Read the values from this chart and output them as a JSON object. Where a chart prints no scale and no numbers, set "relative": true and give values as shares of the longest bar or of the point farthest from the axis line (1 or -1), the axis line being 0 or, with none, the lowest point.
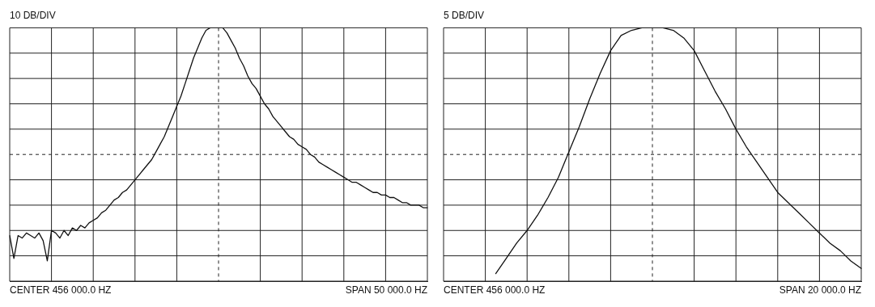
{
  "chart_data": [
    {
      "type": "line",
      "title": "10 DB/DIV",
      "relative": true,
      "grid": true,
      "annotations": [
        "CENTER 456 000.0 HZ",
        "SPAN 50 000.0 HZ"
      ],
      "categories": [
        null,
        null,
        null,
        null,
        null,
        null,
        null,
        null,
        null,
        null,
        null,
        null,
        null,
        null,
        null,
        null,
        null,
        null,
        null,
        null,
        null,
        null,
        null,
        null,
        null,
        null,
        null,
        null,
        null,
        null,
        null,
        null,
        null,
        null,
        null,
        null,
        null,
        null,
        null,
        null,
        null,
        null,
        null,
        null,
        null,
        null,
        null,
        null,
        null,
        null,
        null,
        null,
        null,
        null,
        null,
        null,
        null,
        null,
        null,
        null,
        null,
        null,
        null,
        null,
        null,
        null,
        null,
        null,
        null,
        null,
        null,
        null,
        null,
        null,
        null,
        null,
        null,
        null,
        null,
        null,
        null,
        null,
        null,
        null,
        null,
        null,
        null,
        null,
        null,
        null,
        null,
        null,
        null,
        null,
        null,
        null,
        null,
        null,
        null,
        null,
        null
      ],
      "ref_lines": [
        {
          "axis": "y",
          "value": 0.5,
          "line_style": "dashed"
        }
      ],
      "series": [
        {
          "color": "#111111",
          "values": [
            0.18,
            0.09,
            0.18,
            0.17,
            0.19,
            0.18,
            0.17,
            0.19,
            0.16,
            0.08,
            0.2,
            0.19,
            0.17,
            0.2,
            0.18,
            0.21,
            0.2,
            0.22,
            0.21,
            0.23,
            0.24,
            0.25,
            0.27,
            0.28,
            0.3,
            0.32,
            0.33,
            0.35,
            0.36,
            0.38,
            0.4,
            0.42,
            0.44,
            0.46,
            0.48,
            0.51,
            0.54,
            0.57,
            0.61,
            0.65,
            0.69,
            0.73,
            0.78,
            0.83,
            0.88,
            0.92,
            0.96,
            0.99,
            1,
            1,
            1,
            1,
            0.98,
            0.95,
            0.92,
            0.88,
            0.85,
            0.81,
            0.78,
            0.76,
            0.73,
            0.7,
            0.68,
            0.65,
            0.63,
            0.61,
            0.59,
            0.57,
            0.56,
            0.54,
            0.53,
            0.52,
            0.5,
            0.49,
            0.47,
            0.46,
            0.45,
            0.44,
            0.43,
            0.42,
            0.41,
            0.4,
            0.39,
            0.39,
            0.38,
            0.37,
            0.36,
            0.35,
            0.35,
            0.34,
            0.34,
            0.33,
            0.33,
            0.32,
            0.31,
            0.31,
            0.3,
            0.3,
            0.3,
            0.29,
            0.29
          ]
        }
      ]
    },
    {
      "type": "line",
      "title": "5 DB/DIV",
      "relative": true,
      "grid": true,
      "annotations": [
        "CENTER 456 000.0 HZ",
        "SPAN 20 000.0 HZ"
      ],
      "categories": [
        null,
        null,
        null,
        null,
        null,
        null,
        null,
        null,
        null,
        null,
        null,
        null,
        null,
        null,
        null,
        null,
        null,
        null,
        null,
        null,
        null,
        null,
        null,
        null,
        null,
        null,
        null,
        null,
        null,
        null,
        null,
        null,
        null,
        null,
        null,
        null,
        null,
        null,
        null,
        null,
        null
      ],
      "ref_lines": [
        {
          "axis": "y",
          "value": 0.5,
          "line_style": "dashed"
        }
      ],
      "series": [
        {
          "color": "#111111",
          "values": [
            null,
            null,
            null,
            null,
            null,
            0.03,
            0.09,
            0.15,
            0.2,
            0.26,
            0.33,
            0.41,
            0.51,
            0.61,
            0.72,
            0.82,
            0.91,
            0.97,
            0.99,
            1,
            1,
            1,
            0.99,
            0.96,
            0.91,
            0.83,
            0.75,
            0.68,
            0.6,
            0.53,
            0.47,
            0.41,
            0.35,
            0.31,
            0.27,
            0.23,
            0.19,
            0.15,
            0.12,
            0.08,
            0.05
          ]
        }
      ]
    }
  ]
}
